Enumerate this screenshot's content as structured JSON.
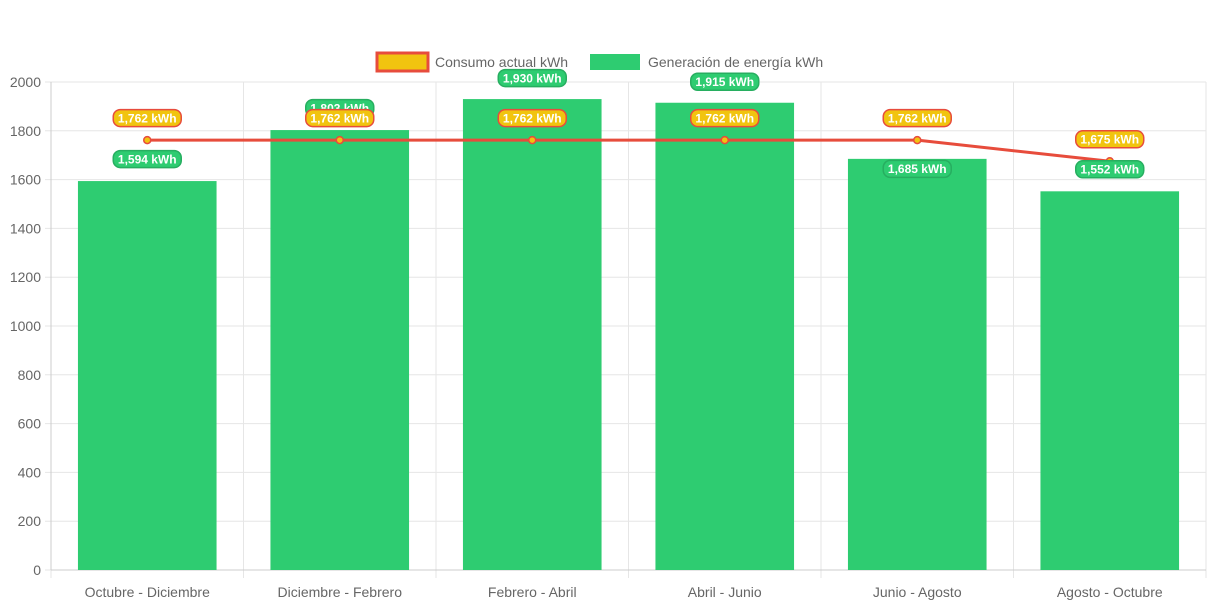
{
  "chart_data": {
    "type": "bar",
    "categories": [
      "Octubre - Diciembre",
      "Diciembre - Febrero",
      "Febrero - Abril",
      "Abril - Junio",
      "Junio - Agosto",
      "Agosto - Octubre"
    ],
    "series": [
      {
        "name": "Consumo actual kWh",
        "type": "line",
        "values": [
          1762,
          1762,
          1762,
          1762,
          1762,
          1675
        ],
        "labels": [
          "1,762 kWh",
          "1,762 kWh",
          "1,762 kWh",
          "1,762 kWh",
          "1,762 kWh",
          "1,675 kWh"
        ],
        "color": "#e74c3c",
        "point_color": "#f1c40f"
      },
      {
        "name": "Generación de energía kWh",
        "type": "bar",
        "values": [
          1594,
          1803,
          1930,
          1915,
          1685,
          1552
        ],
        "labels": [
          "1,594 kWh",
          "1,803 kWh",
          "1,930 kWh",
          "1,915 kWh",
          "1,685 kWh",
          "1,552 kWh"
        ],
        "color": "#2ecc71"
      }
    ],
    "ylim": [
      0,
      2000
    ],
    "yticks": [
      "0",
      "200",
      "400",
      "600",
      "800",
      "1000",
      "1200",
      "1400",
      "1600",
      "1800",
      "2000"
    ],
    "xlabel": "",
    "ylabel": "",
    "grid": true,
    "legend": "top-center"
  }
}
